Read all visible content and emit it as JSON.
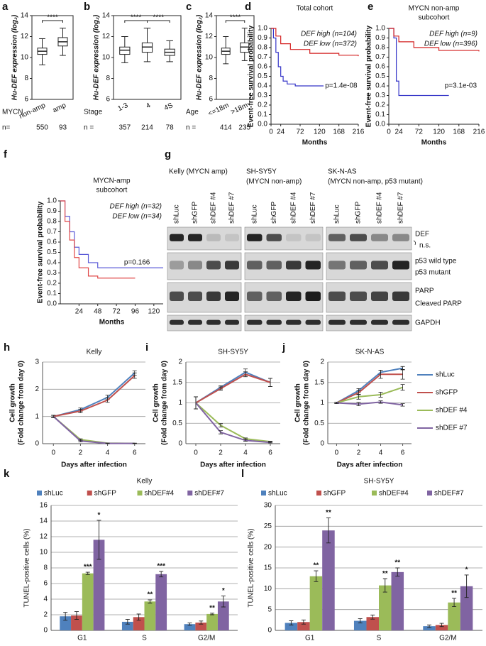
{
  "chart_data": [
    {
      "panel": "a",
      "type": "box",
      "ylabel": "Hu-DEF expression (log₂)",
      "ylim": [
        6,
        14
      ],
      "yticks": [
        6,
        8,
        10,
        12,
        14
      ],
      "group_label": "MYCN",
      "categories": [
        "non-amp",
        "amp"
      ],
      "boxes": [
        {
          "low": 9.3,
          "q1": 10.3,
          "median": 10.6,
          "q3": 10.9,
          "high": 11.8
        },
        {
          "low": 10.2,
          "q1": 11.1,
          "median": 11.5,
          "q3": 11.9,
          "high": 12.8
        }
      ],
      "significance": [
        "****"
      ],
      "n_label": "n=",
      "n": [
        550,
        93
      ]
    },
    {
      "panel": "b",
      "type": "box",
      "ylabel": "Hu-DEF expression (log₂)",
      "ylim": [
        6,
        14
      ],
      "yticks": [
        6,
        8,
        10,
        12,
        14
      ],
      "group_label": "Stage",
      "categories": [
        "1-3",
        "4",
        "4S"
      ],
      "boxes": [
        {
          "low": 9.5,
          "q1": 10.3,
          "median": 10.7,
          "q3": 11.0,
          "high": 12.0
        },
        {
          "low": 9.6,
          "q1": 10.5,
          "median": 11.0,
          "q3": 11.4,
          "high": 12.8
        },
        {
          "low": 9.6,
          "q1": 10.2,
          "median": 10.5,
          "q3": 10.8,
          "high": 11.6
        }
      ],
      "significance": [
        "****",
        "****"
      ],
      "n_label": "n =",
      "n": [
        357,
        214,
        78
      ]
    },
    {
      "panel": "c",
      "type": "box",
      "ylabel": "Hu-DEF expression (log₂)",
      "ylim": [
        6,
        14
      ],
      "yticks": [
        6,
        8,
        10,
        12,
        14
      ],
      "group_label": "Age",
      "categories": [
        "<=18m",
        ">18m"
      ],
      "boxes": [
        {
          "low": 9.4,
          "q1": 10.3,
          "median": 10.6,
          "q3": 10.9,
          "high": 12.0
        },
        {
          "low": 9.7,
          "q1": 10.5,
          "median": 11.0,
          "q3": 11.4,
          "high": 12.8
        }
      ],
      "significance": [
        "****"
      ],
      "n_label": "n =",
      "n": [
        414,
        235
      ]
    },
    {
      "panel": "d",
      "type": "survival",
      "title": [
        "Total cohort"
      ],
      "ylabel": "Event-free survival probability",
      "xlabel": "Months",
      "xlim": [
        0,
        216
      ],
      "xticks": [
        0,
        24,
        72,
        120,
        168,
        216
      ],
      "ylim": [
        0,
        1
      ],
      "yticks": [
        {
          "value": 0,
          "label": "0.0"
        },
        {
          "value": 0.1,
          "label": "0.1"
        },
        {
          "value": 0.2,
          "label": "0.2"
        },
        {
          "value": 0.3,
          "label": "0.3"
        },
        {
          "value": 0.4,
          "label": "0.4"
        },
        {
          "value": 0.5,
          "label": "0.5"
        },
        {
          "value": 0.6,
          "label": "0.6"
        },
        {
          "value": 0.7,
          "label": "0.7"
        },
        {
          "value": 0.8,
          "label": "0.8"
        },
        {
          "value": 0.9,
          "label": "0.9"
        },
        {
          "value": 1,
          "label": "1.0"
        }
      ],
      "series": [
        {
          "name": "DEF high (n=104)",
          "color": "#3535c8",
          "x": [
            0,
            6,
            12,
            18,
            24,
            30,
            40,
            60,
            130
          ],
          "values": [
            1,
            0.9,
            0.75,
            0.6,
            0.5,
            0.45,
            0.42,
            0.4,
            0.4
          ]
        },
        {
          "name": "DEF low (n=372)",
          "color": "#d42020",
          "x": [
            0,
            12,
            24,
            48,
            96,
            168,
            216
          ],
          "values": [
            1,
            0.92,
            0.84,
            0.78,
            0.74,
            0.72,
            0.71
          ]
        }
      ],
      "annotation": "p=1.4e-08"
    },
    {
      "panel": "e",
      "type": "survival",
      "title": [
        "MYCN non-amp",
        "subcohort"
      ],
      "ylabel": "Event-free survival probability",
      "xlabel": "Months",
      "xlim": [
        0,
        216
      ],
      "xticks": [
        0,
        24,
        72,
        120,
        168,
        216
      ],
      "ylim": [
        0,
        1
      ],
      "yticks": [
        {
          "value": 0,
          "label": "0.0"
        },
        {
          "value": 0.1,
          "label": "0.1"
        },
        {
          "value": 0.2,
          "label": "0.2"
        },
        {
          "value": 0.3,
          "label": "0.3"
        },
        {
          "value": 0.4,
          "label": "0.4"
        },
        {
          "value": 0.5,
          "label": "0.5"
        },
        {
          "value": 0.6,
          "label": "0.6"
        },
        {
          "value": 0.7,
          "label": "0.7"
        },
        {
          "value": 0.8,
          "label": "0.8"
        },
        {
          "value": 0.9,
          "label": "0.9"
        },
        {
          "value": 1,
          "label": "1.0"
        }
      ],
      "series": [
        {
          "name": "DEF high (n=9)",
          "color": "#3535c8",
          "x": [
            0,
            12,
            18,
            24,
            144
          ],
          "values": [
            1,
            0.9,
            0.45,
            0.3,
            0.3
          ]
        },
        {
          "name": "DEF low (n=396)",
          "color": "#d42020",
          "x": [
            0,
            12,
            24,
            60,
            120,
            216
          ],
          "values": [
            1,
            0.92,
            0.86,
            0.8,
            0.77,
            0.76
          ]
        }
      ],
      "annotation": "p=3.1e-03"
    },
    {
      "panel": "f",
      "type": "survival",
      "title": [
        "MYCN-amp",
        "subcohort"
      ],
      "ylabel": "Event-free survival probability",
      "xlabel": "Months",
      "xlim": [
        0,
        132
      ],
      "xticks": [
        24,
        48,
        72,
        96,
        120
      ],
      "ylim": [
        0,
        1
      ],
      "yticks": [
        {
          "value": 0,
          "label": "0.0"
        },
        {
          "value": 0.1,
          "label": "0.1"
        },
        {
          "value": 0.2,
          "label": "0.2"
        },
        {
          "value": 0.3,
          "label": "0.3"
        },
        {
          "value": 0.4,
          "label": "0.4"
        },
        {
          "value": 0.5,
          "label": "0.5"
        },
        {
          "value": 0.6,
          "label": "0.6"
        },
        {
          "value": 0.7,
          "label": "0.7"
        },
        {
          "value": 0.8,
          "label": "0.8"
        },
        {
          "value": 0.9,
          "label": "0.9"
        },
        {
          "value": 1,
          "label": "1.0"
        }
      ],
      "series": [
        {
          "name": "DEF high (n=32)",
          "color": "#5a5ad8",
          "x": [
            0,
            6,
            12,
            18,
            24,
            36,
            48,
            132
          ],
          "values": [
            1,
            0.85,
            0.7,
            0.55,
            0.48,
            0.4,
            0.35,
            0.35
          ]
        },
        {
          "name": "DEF low (n=34)",
          "color": "#e04848",
          "x": [
            0,
            6,
            12,
            18,
            24,
            36,
            48,
            96
          ],
          "values": [
            1,
            0.8,
            0.62,
            0.45,
            0.35,
            0.27,
            0.25,
            0.25
          ]
        }
      ],
      "annotation": "p=0.166"
    },
    {
      "panel": "h",
      "type": "line",
      "title": "Kelly",
      "ylabel": [
        "Cell growth",
        "(Fold change from day 0)"
      ],
      "xlabel": "Days after infection",
      "x": [
        0,
        2,
        4,
        6
      ],
      "xlim": [
        -0.8,
        6.8
      ],
      "xticks": [
        0,
        2,
        4,
        6
      ],
      "ylim": [
        0,
        3
      ],
      "yticks": [
        0,
        1,
        2,
        3
      ],
      "grid": true,
      "series": [
        {
          "name": "shLuc",
          "color": "#4f81bd",
          "values": [
            1,
            1.25,
            1.7,
            2.6
          ],
          "errors": [
            0.04,
            0.06,
            0.08,
            0.08
          ]
        },
        {
          "name": "shGFP",
          "color": "#c0504d",
          "values": [
            1,
            1.2,
            1.6,
            2.5
          ],
          "errors": [
            0.04,
            0.06,
            0.08,
            0.1
          ]
        },
        {
          "name": "shDEF #4",
          "color": "#9bbb59",
          "values": [
            1,
            0.15,
            0.02,
            0.01
          ],
          "errors": [
            0.04,
            0.03,
            0.01,
            0.01
          ]
        },
        {
          "name": "shDEF #7",
          "color": "#8064a2",
          "values": [
            1,
            0.1,
            0.01,
            0.01
          ],
          "errors": [
            0.04,
            0.03,
            0.01,
            0.01
          ]
        }
      ]
    },
    {
      "panel": "i",
      "type": "line",
      "title": "SH-SY5Y",
      "ylabel": [
        "Cell growth",
        "(Fold change from day 0)"
      ],
      "xlabel": "Days after infection",
      "x": [
        0,
        2,
        4,
        6
      ],
      "xlim": [
        -0.8,
        6.8
      ],
      "xticks": [
        0,
        2,
        4,
        6
      ],
      "ylim": [
        0,
        2
      ],
      "yticks": [
        0,
        0.5,
        1,
        1.5,
        2
      ],
      "grid": true,
      "series": [
        {
          "name": "shLuc",
          "color": "#4f81bd",
          "values": [
            1,
            1.38,
            1.75,
            1.5
          ],
          "errors": [
            0.15,
            0.04,
            0.08,
            0.1
          ]
        },
        {
          "name": "shGFP",
          "color": "#c0504d",
          "values": [
            1,
            1.35,
            1.7,
            1.5
          ],
          "errors": [
            0.15,
            0.04,
            0.06,
            0.1
          ]
        },
        {
          "name": "shDEF #4",
          "color": "#9bbb59",
          "values": [
            1,
            0.45,
            0.12,
            0.05
          ],
          "errors": [
            0.15,
            0.04,
            0.02,
            0.01
          ]
        },
        {
          "name": "shDEF #7",
          "color": "#8064a2",
          "values": [
            1,
            0.28,
            0.08,
            0.03
          ],
          "errors": [
            0.15,
            0.04,
            0.02,
            0.01
          ]
        }
      ]
    },
    {
      "panel": "j",
      "type": "line",
      "title": "SK-N-AS",
      "ylabel": [
        "Cell growth",
        "(Fold change from day 0)"
      ],
      "xlabel": "Days after infection",
      "x": [
        0,
        2,
        4,
        6
      ],
      "xlim": [
        -0.8,
        6.8
      ],
      "xticks": [
        0,
        2,
        4,
        6
      ],
      "ylim": [
        0,
        2
      ],
      "yticks": [
        0,
        0.5,
        1,
        1.5,
        2
      ],
      "grid": true,
      "legend": "right",
      "series": [
        {
          "name": "shLuc",
          "color": "#4f81bd",
          "values": [
            1,
            1.3,
            1.75,
            1.85
          ],
          "errors": [
            0.02,
            0.05,
            0.05,
            0.04
          ]
        },
        {
          "name": "shGFP",
          "color": "#c0504d",
          "values": [
            1,
            1.25,
            1.7,
            1.7
          ],
          "errors": [
            0.02,
            0.05,
            0.1,
            0.12
          ]
        },
        {
          "name": "shDEF #4",
          "color": "#9bbb59",
          "values": [
            1,
            1.15,
            1.2,
            1.38
          ],
          "errors": [
            0.02,
            0.06,
            0.06,
            0.07
          ]
        },
        {
          "name": "shDEF #7",
          "color": "#8064a2",
          "values": [
            1,
            0.97,
            1.02,
            0.95
          ],
          "errors": [
            0.02,
            0.04,
            0.03,
            0.03
          ]
        }
      ]
    },
    {
      "panel": "k",
      "type": "bar",
      "title": "Kelly",
      "ylabel": "TUNEL-positive cells (%)",
      "categories": [
        "G1",
        "S",
        "G2/M"
      ],
      "ylim": [
        0,
        16
      ],
      "yticks": [
        0,
        2,
        4,
        6,
        8,
        10,
        12,
        14,
        16
      ],
      "grid": true,
      "series": [
        {
          "name": "shLuc",
          "color": "#4f81bd",
          "values": [
            1.8,
            1.1,
            0.8
          ],
          "errors": [
            0.5,
            0.3,
            0.15
          ],
          "significance": [
            null,
            null,
            null
          ]
        },
        {
          "name": "shGFP",
          "color": "#c0504d",
          "values": [
            1.9,
            1.7,
            1.0
          ],
          "errors": [
            0.5,
            0.4,
            0.2
          ],
          "significance": [
            null,
            null,
            null
          ]
        },
        {
          "name": "shDEF#4",
          "color": "#9bbb59",
          "values": [
            7.3,
            3.7,
            2.1
          ],
          "errors": [
            0.15,
            0.2,
            0.1
          ],
          "significance": [
            "***",
            "**",
            "**"
          ]
        },
        {
          "name": "shDEF#7",
          "color": "#8064a2",
          "values": [
            11.6,
            7.2,
            3.7
          ],
          "errors": [
            2.5,
            0.35,
            0.7
          ],
          "significance": [
            "*",
            "***",
            "*"
          ]
        }
      ]
    },
    {
      "panel": "l",
      "type": "bar",
      "title": "SH-SY5Y",
      "ylabel": "TUNEL-positive cells (%)",
      "categories": [
        "G1",
        "S",
        "G2/M"
      ],
      "ylim": [
        0,
        30
      ],
      "yticks": [
        0,
        5,
        10,
        15,
        20,
        25,
        30
      ],
      "grid": true,
      "series": [
        {
          "name": "shLuc",
          "color": "#4f81bd",
          "values": [
            1.8,
            2.3,
            1.0
          ],
          "errors": [
            0.5,
            0.5,
            0.3
          ],
          "significance": [
            null,
            null,
            null
          ]
        },
        {
          "name": "shGFP",
          "color": "#c0504d",
          "values": [
            2.0,
            3.2,
            1.3
          ],
          "errors": [
            0.5,
            0.5,
            0.4
          ],
          "significance": [
            null,
            null,
            null
          ]
        },
        {
          "name": "shDEF#4",
          "color": "#9bbb59",
          "values": [
            13,
            10.8,
            6.7
          ],
          "errors": [
            1.3,
            1.6,
            1.0
          ],
          "significance": [
            "**",
            "**",
            "**"
          ]
        },
        {
          "name": "shDEF#7",
          "color": "#8064a2",
          "values": [
            24,
            14,
            10.6
          ],
          "errors": [
            3,
            1,
            2.7
          ],
          "significance": [
            "**",
            "**",
            "*"
          ]
        }
      ]
    }
  ],
  "blot": {
    "panel": "g",
    "groups": [
      {
        "title": [
          "Kelly (MYCN amp)"
        ]
      },
      {
        "title": [
          "SH-SY5Y",
          "(MYCN non-amp)"
        ]
      },
      {
        "title": [
          "SK-N-AS",
          "(MYCN non-amp, p53 mutant)"
        ]
      }
    ],
    "lanes": [
      "shLuc",
      "shGFP",
      "shDEF #4",
      "shDEF #7"
    ],
    "rows": [
      [
        "DEF",
        "n.s."
      ],
      [
        "p53 wild type",
        "p53 mutant"
      ],
      [
        "PARP",
        "Cleaved PARP"
      ],
      [
        "GAPDH"
      ]
    ]
  }
}
